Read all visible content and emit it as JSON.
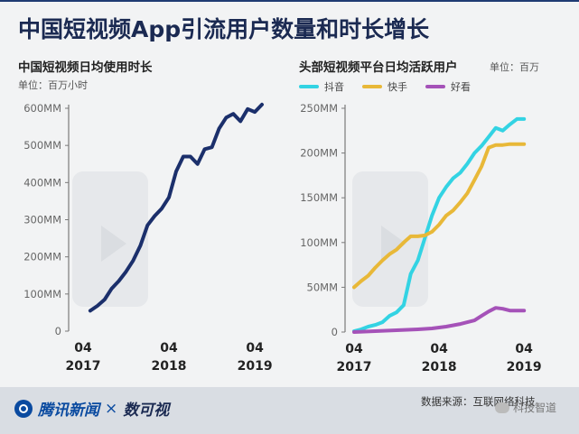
{
  "header": {
    "title": "中国短视频App引流用户数量和时长增长"
  },
  "colors": {
    "navy": "#1b2f6b",
    "douyin": "#33d3e3",
    "kuaishou": "#e8b838",
    "haokan": "#a552b8",
    "axis_text": "#666666"
  },
  "chart_data": [
    {
      "type": "line",
      "title": "中国短视频日均使用时长",
      "unit_label": "单位：百万小时",
      "ylim": [
        0,
        600
      ],
      "yticks": [
        0,
        100,
        200,
        300,
        400,
        500,
        600
      ],
      "ytick_labels": [
        "0",
        "100MM",
        "200MM",
        "300MM",
        "400MM",
        "500MM",
        "600MM"
      ],
      "x_range": [
        "2017-04",
        "2019-05"
      ],
      "xticks": [
        {
          "value": "2017-04",
          "month": "04",
          "year": "2017"
        },
        {
          "value": "2018-04",
          "month": "04",
          "year": "2018"
        },
        {
          "value": "2019-04",
          "month": "04",
          "year": "2019"
        }
      ],
      "grid": false,
      "series": [
        {
          "color": "#1b2f6b",
          "x": [
            "2017-05",
            "2017-06",
            "2017-07",
            "2017-08",
            "2017-09",
            "2017-10",
            "2017-11",
            "2017-12",
            "2018-01",
            "2018-02",
            "2018-03",
            "2018-04",
            "2018-05",
            "2018-06",
            "2018-07",
            "2018-08",
            "2018-09",
            "2018-10",
            "2018-11",
            "2018-12",
            "2019-01",
            "2019-02",
            "2019-03",
            "2019-04",
            "2019-05"
          ],
          "values": [
            55,
            68,
            85,
            115,
            135,
            160,
            190,
            230,
            285,
            310,
            330,
            360,
            430,
            470,
            470,
            450,
            490,
            495,
            545,
            575,
            585,
            565,
            598,
            590,
            610
          ]
        }
      ]
    },
    {
      "type": "line",
      "title": "头部短视频平台日均活跃用户",
      "unit_label": "单位：百万",
      "ylim": [
        0,
        250
      ],
      "yticks": [
        0,
        50,
        100,
        150,
        200,
        250
      ],
      "ytick_labels": [
        "0",
        "50MM",
        "100MM",
        "150MM",
        "200MM",
        "250MM"
      ],
      "x_range": [
        "2017-04",
        "2019-05"
      ],
      "xticks": [
        {
          "value": "2017-04",
          "month": "04",
          "year": "2017"
        },
        {
          "value": "2018-04",
          "month": "04",
          "year": "2018"
        },
        {
          "value": "2019-04",
          "month": "04",
          "year": "2019"
        }
      ],
      "grid": false,
      "legend_position": "top-left",
      "series": [
        {
          "name": "抖音",
          "color": "#33d3e3",
          "x": [
            "2017-04",
            "2017-05",
            "2017-06",
            "2017-07",
            "2017-08",
            "2017-09",
            "2017-10",
            "2017-11",
            "2017-12",
            "2018-01",
            "2018-02",
            "2018-03",
            "2018-04",
            "2018-05",
            "2018-06",
            "2018-07",
            "2018-08",
            "2018-09",
            "2018-10",
            "2018-11",
            "2018-12",
            "2019-01",
            "2019-02",
            "2019-03",
            "2019-04"
          ],
          "values": [
            1,
            3,
            6,
            8,
            11,
            18,
            22,
            30,
            65,
            80,
            105,
            130,
            150,
            162,
            172,
            178,
            188,
            200,
            208,
            218,
            228,
            225,
            232,
            238,
            238
          ]
        },
        {
          "name": "快手",
          "color": "#e8b838",
          "x": [
            "2017-04",
            "2017-05",
            "2017-06",
            "2017-07",
            "2017-08",
            "2017-09",
            "2017-10",
            "2017-11",
            "2017-12",
            "2018-01",
            "2018-02",
            "2018-03",
            "2018-04",
            "2018-05",
            "2018-06",
            "2018-07",
            "2018-08",
            "2018-09",
            "2018-10",
            "2018-11",
            "2018-12",
            "2019-01",
            "2019-02",
            "2019-03",
            "2019-04"
          ],
          "values": [
            50,
            57,
            63,
            72,
            80,
            87,
            92,
            100,
            107,
            107,
            108,
            112,
            120,
            130,
            136,
            145,
            155,
            170,
            185,
            206,
            209,
            209,
            210,
            210,
            210
          ]
        },
        {
          "name": "好看",
          "color": "#a552b8",
          "x": [
            "2017-04",
            "2017-07",
            "2017-10",
            "2018-01",
            "2018-03",
            "2018-05",
            "2018-07",
            "2018-09",
            "2018-10",
            "2018-11",
            "2018-12",
            "2019-01",
            "2019-02",
            "2019-03",
            "2019-04"
          ],
          "values": [
            0,
            1,
            2,
            3,
            4,
            6,
            9,
            13,
            18,
            23,
            27,
            26,
            24,
            24,
            24
          ]
        }
      ]
    }
  ],
  "footer": {
    "brand": "腾讯新闻",
    "separator": "×",
    "brand2": "数可视",
    "source": "数据来源：互联网络科技",
    "watermark": "科技智道"
  }
}
